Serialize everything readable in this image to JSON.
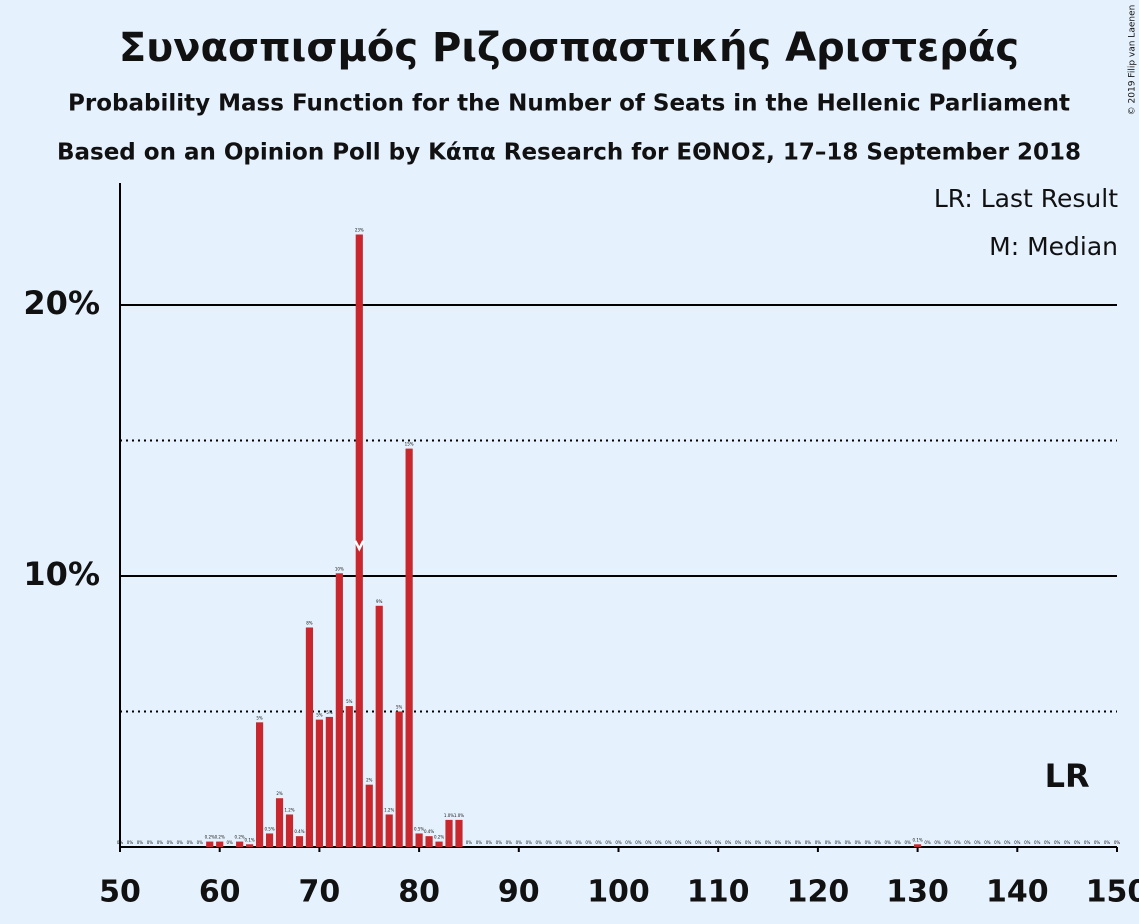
{
  "chart_data": {
    "type": "bar",
    "title": "Συνασπισμός Ριζοσπαστικής Αριστεράς",
    "subtitle": "Probability Mass Function for the Number of Seats in the Hellenic Parliament",
    "subtitle2": "Based on an Opinion Poll by Κάπα Research for ΕΘΝΟΣ, 17–18 September 2018",
    "copyright": "© 2019 Filip van Laenen",
    "legend": [
      "LR: Last Result",
      "M: Median"
    ],
    "last_result": 145,
    "last_result_label": "LR",
    "median": 74,
    "color": "#c8282d",
    "x": [
      50,
      51,
      52,
      53,
      54,
      55,
      56,
      57,
      58,
      59,
      60,
      61,
      62,
      63,
      64,
      65,
      66,
      67,
      68,
      69,
      70,
      71,
      72,
      73,
      74,
      75,
      76,
      77,
      78,
      79,
      80,
      81,
      82,
      83,
      84,
      85,
      86,
      87,
      88,
      89,
      90,
      91,
      92,
      93,
      94,
      95,
      96,
      97,
      98,
      99,
      100,
      101,
      102,
      103,
      104,
      105,
      106,
      107,
      108,
      109,
      110,
      111,
      112,
      113,
      114,
      115,
      116,
      117,
      118,
      119,
      120,
      121,
      122,
      123,
      124,
      125,
      126,
      127,
      128,
      129,
      130,
      131,
      132,
      133,
      134,
      135,
      136,
      137,
      138,
      139,
      140,
      141,
      142,
      143,
      144,
      145,
      146,
      147,
      148,
      149,
      150
    ],
    "values": [
      0,
      0,
      0,
      0,
      0,
      0,
      0,
      0,
      0,
      0.2,
      0.2,
      0,
      0.2,
      0.1,
      4.6,
      0.5,
      1.8,
      1.2,
      0.4,
      8.1,
      4.7,
      4.8,
      10.1,
      5.2,
      22.6,
      2.3,
      8.9,
      1.2,
      5,
      14.7,
      0.5,
      0.4,
      0.2,
      1.0,
      1.0,
      0,
      0,
      0,
      0,
      0,
      0,
      0,
      0,
      0,
      0,
      0,
      0,
      0,
      0,
      0,
      0,
      0,
      0,
      0,
      0,
      0,
      0,
      0,
      0,
      0,
      0,
      0,
      0,
      0,
      0,
      0,
      0,
      0,
      0,
      0,
      0,
      0,
      0,
      0,
      0,
      0,
      0,
      0,
      0,
      0,
      0.1,
      0,
      0,
      0,
      0,
      0,
      0,
      0,
      0,
      0,
      0,
      0,
      0,
      0,
      0,
      0,
      0,
      0,
      0,
      0,
      0
    ],
    "value_labels": [
      "0%",
      "0%",
      "0%",
      "0%",
      "0%",
      "0%",
      "0%",
      "0%",
      "0%",
      "0.2%",
      "0.2%",
      "0%",
      "0.2%",
      "0.1%",
      "5%",
      "0.5%",
      "2%",
      "1.2%",
      "0.4%",
      "8%",
      "5%",
      "5%",
      "10%",
      "5%",
      "23%",
      "2%",
      "9%",
      "1.2%",
      "5%",
      "15%",
      "0.5%",
      "0.4%",
      "0.2%",
      "1.0%",
      "1.0%",
      "0%",
      "0%",
      "0%",
      "0%",
      "0%",
      "0%",
      "0%",
      "0%",
      "0%",
      "0%",
      "0%",
      "0%",
      "0%",
      "0%",
      "0%",
      "0%",
      "0%",
      "0%",
      "0%",
      "0%",
      "0%",
      "0%",
      "0%",
      "0%",
      "0%",
      "0%",
      "0%",
      "0%",
      "0%",
      "0%",
      "0%",
      "0%",
      "0%",
      "0%",
      "0%",
      "0%",
      "0%",
      "0%",
      "0%",
      "0%",
      "0%",
      "0%",
      "0%",
      "0%",
      "0%",
      "0.1%",
      "0%",
      "0%",
      "0%",
      "0%",
      "0%",
      "0%",
      "0%",
      "0%",
      "0%",
      "0%",
      "0%",
      "0%",
      "0%",
      "0%",
      "0%",
      "0%",
      "0%",
      "0%",
      "0%",
      "0%"
    ],
    "xlim": [
      50,
      150
    ],
    "xticks": [
      50,
      60,
      70,
      80,
      90,
      100,
      110,
      120,
      130,
      140,
      150
    ],
    "ylim": [
      0,
      24.5
    ],
    "yticks": [
      {
        "value": 10,
        "label": "10%"
      },
      {
        "value": 20,
        "label": "20%"
      }
    ],
    "yticks_minor": [
      5,
      15
    ]
  }
}
